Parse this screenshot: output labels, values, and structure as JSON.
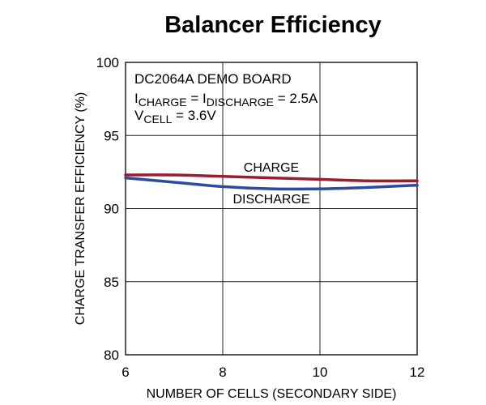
{
  "chart_data": {
    "type": "line",
    "title": "Balancer Efficiency",
    "xlabel": "NUMBER OF CELLS (SECONDARY SIDE)",
    "ylabel": "CHARGE TRANSFER EFFICIENCY (%)",
    "xlim": [
      6,
      12
    ],
    "ylim": [
      80,
      100
    ],
    "xticks": [
      6,
      8,
      10,
      12
    ],
    "yticks": [
      80,
      85,
      90,
      95,
      100
    ],
    "grid": true,
    "annotation": {
      "line1": "DC2064A DEMO BOARD",
      "line2": {
        "i1": "I",
        "s1": "CHARGE",
        "mid": " = I",
        "s2": "DISCHARGE",
        "tail": " = 2.5A"
      },
      "line3": {
        "v": "V",
        "s": "CELL",
        "tail": " = 3.6V"
      }
    },
    "series": [
      {
        "name": "CHARGE",
        "color": "#9b1b30",
        "x": [
          6,
          7,
          8,
          9,
          10,
          11,
          12
        ],
        "y": [
          92.3,
          92.3,
          92.2,
          92.1,
          92.0,
          91.9,
          91.9
        ]
      },
      {
        "name": "DISCHARGE",
        "color": "#2e4a9e",
        "x": [
          6,
          7,
          8,
          9,
          10,
          11,
          12
        ],
        "y": [
          92.1,
          91.8,
          91.5,
          91.35,
          91.35,
          91.45,
          91.6
        ]
      }
    ]
  }
}
